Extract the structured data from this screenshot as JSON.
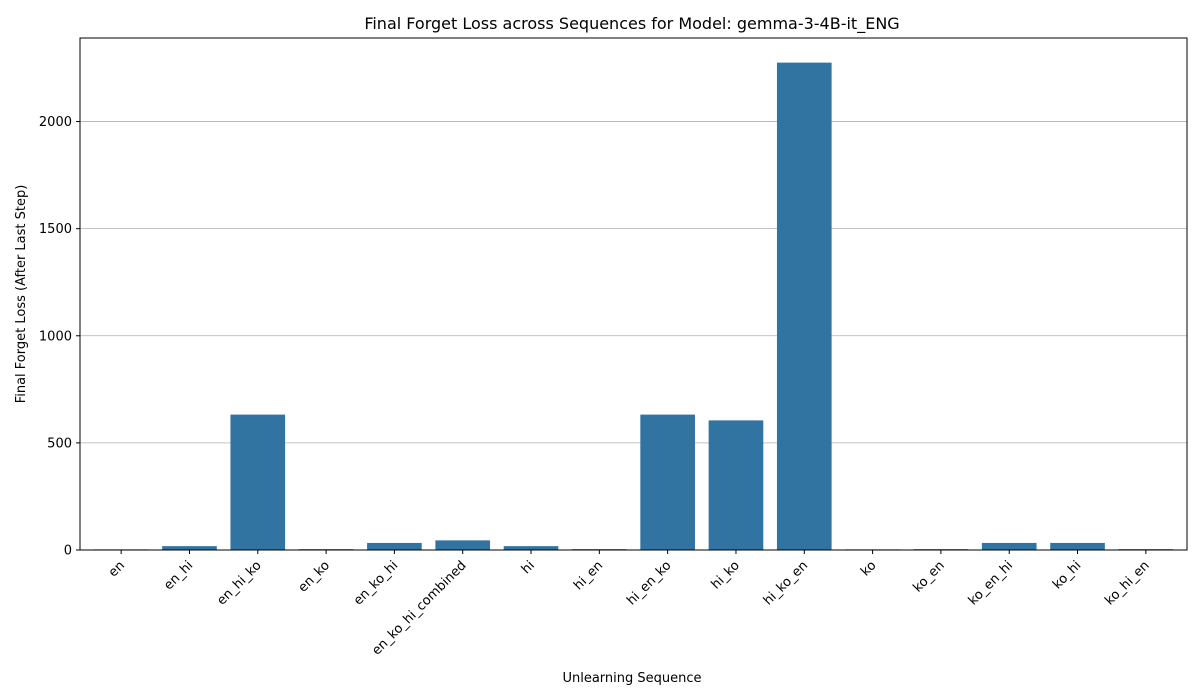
{
  "chart_data": {
    "type": "bar",
    "title": "Final Forget Loss across Sequences for Model: gemma-3-4B-it_ENG",
    "xlabel": "Unlearning Sequence",
    "ylabel": "Final Forget Loss (After Last Step)",
    "categories": [
      "en",
      "en_hi",
      "en_hi_ko",
      "en_ko",
      "en_ko_hi",
      "en_ko_hi_combined",
      "hi",
      "hi_en",
      "hi_en_ko",
      "hi_ko",
      "hi_ko_en",
      "ko",
      "ko_en",
      "ko_en_hi",
      "ko_hi",
      "ko_hi_en"
    ],
    "values": [
      3,
      18,
      632,
      4,
      33,
      45,
      18,
      4,
      632,
      605,
      2275,
      3,
      4,
      33,
      33,
      4
    ],
    "ylim": [
      0,
      2390
    ],
    "yticks": [
      0,
      500,
      1000,
      1500,
      2000
    ],
    "ytick_labels": [
      "0",
      "500",
      "1000",
      "1500",
      "2000"
    ],
    "bar_color": "#3274a1",
    "grid": "y",
    "legend": "none"
  }
}
